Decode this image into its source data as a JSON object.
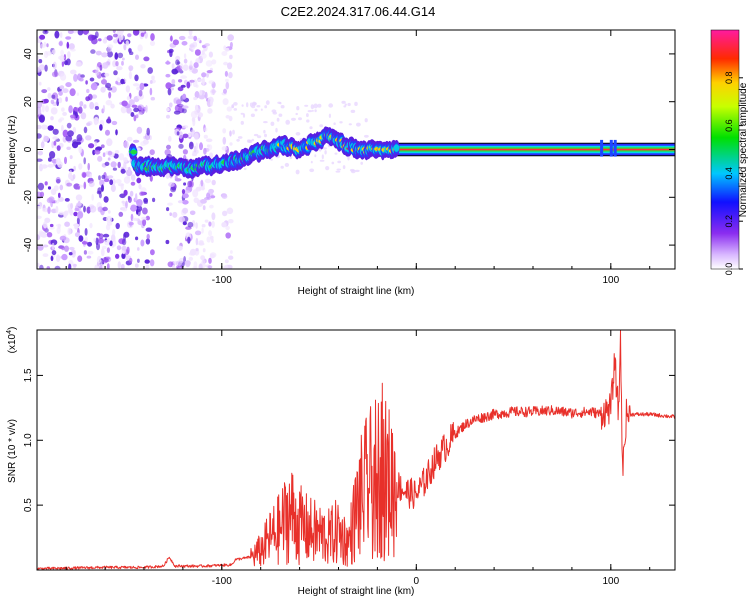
{
  "title": "C2E2.2024.317.06.44.G14",
  "chart_data": [
    {
      "type": "heatmap",
      "xlabel": "Height of straight line (km)",
      "ylabel": "Frequency (Hz)",
      "xlim": [
        -195,
        133
      ],
      "ylim": [
        -50,
        50
      ],
      "x_ticks": [
        -100,
        0,
        100
      ],
      "x_tick_labels": [
        "-100",
        "",
        "100"
      ],
      "y_ticks": [
        -40,
        -20,
        0,
        20,
        40
      ],
      "y_tick_labels": [
        "-40",
        "-20",
        "0",
        "20",
        "40"
      ],
      "colorbar": {
        "label": "Normalized spectral amplitude",
        "range": [
          0,
          1
        ],
        "ticks": [
          0.0,
          0.2,
          0.4,
          0.6,
          0.8
        ],
        "tick_labels": [
          "0.0",
          "0.2",
          "0.4",
          "0.6",
          "0.8"
        ]
      },
      "signal_track": {
        "x": [
          -145,
          -130,
          -115,
          -100,
          -90,
          -80,
          -70,
          -60,
          -50,
          -45,
          -40,
          -30,
          -20,
          -10,
          0,
          20,
          60,
          100,
          133
        ],
        "freq": [
          -7,
          -7,
          -8,
          -6,
          -4,
          -1,
          2,
          0,
          4,
          6,
          3,
          0,
          0,
          0,
          0,
          0,
          0,
          0,
          0
        ]
      },
      "noise_region_x": [
        -195,
        -95
      ],
      "grid": false
    },
    {
      "type": "line",
      "xlabel": "Height of straight line (km)",
      "ylabel": "SNR (10 * v/v)",
      "y_multiplier_label": "(x10",
      "y_multiplier_exp": "4",
      "xlim": [
        -195,
        133
      ],
      "ylim": [
        0,
        1.85
      ],
      "x_ticks": [
        -100,
        0,
        100
      ],
      "x_tick_labels": [
        "-100",
        "0",
        "100"
      ],
      "y_ticks": [
        0.5,
        1.0,
        1.5
      ],
      "y_tick_labels": [
        "0.5",
        "1.0",
        "1.5"
      ],
      "series": [
        {
          "color": "#e8302a",
          "x": [
            -195,
            -160,
            -140,
            -130,
            -127,
            -124,
            -110,
            -95,
            -93,
            -85,
            -80,
            -75,
            -70,
            -65,
            -60,
            -55,
            -50,
            -45,
            -40,
            -35,
            -30,
            -25,
            -20,
            -18,
            -15,
            -10,
            -5,
            0,
            5,
            10,
            15,
            20,
            25,
            30,
            40,
            50,
            60,
            70,
            80,
            90,
            95,
            100,
            102,
            104,
            105,
            106,
            108,
            110,
            120,
            133
          ],
          "y": [
            0.01,
            0.02,
            0.02,
            0.03,
            0.1,
            0.03,
            0.03,
            0.04,
            0.08,
            0.1,
            0.15,
            0.25,
            0.32,
            0.45,
            0.35,
            0.3,
            0.28,
            0.25,
            0.3,
            0.2,
            0.5,
            0.65,
            0.7,
            0.75,
            0.68,
            0.66,
            0.6,
            0.58,
            0.7,
            0.85,
            0.95,
            1.05,
            1.12,
            1.16,
            1.2,
            1.22,
            1.22,
            1.23,
            1.21,
            1.22,
            1.2,
            1.25,
            1.6,
            1.2,
            1.84,
            0.75,
            1.2,
            1.2,
            1.2,
            1.18
          ]
        }
      ],
      "grid": false
    }
  ]
}
